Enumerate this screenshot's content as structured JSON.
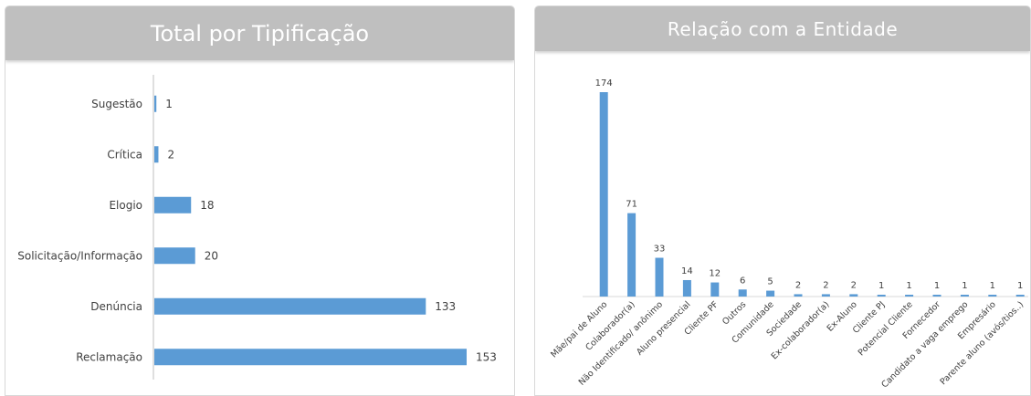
{
  "chart_data": [
    {
      "type": "bar",
      "orientation": "horizontal",
      "title": "Total por Tipificação",
      "categories": [
        "Sugestão",
        "Crítica",
        "Elogio",
        "Solicitação/Informação",
        "Denúncia",
        "Reclamação"
      ],
      "values": [
        1,
        2,
        18,
        20,
        133,
        153
      ],
      "data_labels": true,
      "grid": false,
      "legend": "none",
      "bar_color": "#5b9bd5",
      "xlim": [
        0,
        153
      ]
    },
    {
      "type": "bar",
      "orientation": "vertical",
      "title": "Relação com a Entidade",
      "categories": [
        "Mãe/pai de Aluno",
        "Colaborador(a)",
        "Não Identificado/ anônimo",
        "Aluno presencial",
        "Cliente PF",
        "Outros",
        "Comunidade",
        "Sociedade",
        "Ex-colaborador(a)",
        "Ex-Aluno",
        "Cliente PJ",
        "Potencial Cliente",
        "Fornecedor",
        "Candidato a vaga emprego",
        "Empresário",
        "Parente aluno (avós/tios..)"
      ],
      "values": [
        174,
        71,
        33,
        14,
        12,
        6,
        5,
        2,
        2,
        2,
        1,
        1,
        1,
        1,
        1,
        1
      ],
      "data_labels": true,
      "grid": false,
      "legend": "none",
      "bar_color": "#5b9bd5",
      "ylim": [
        0,
        174
      ]
    }
  ]
}
